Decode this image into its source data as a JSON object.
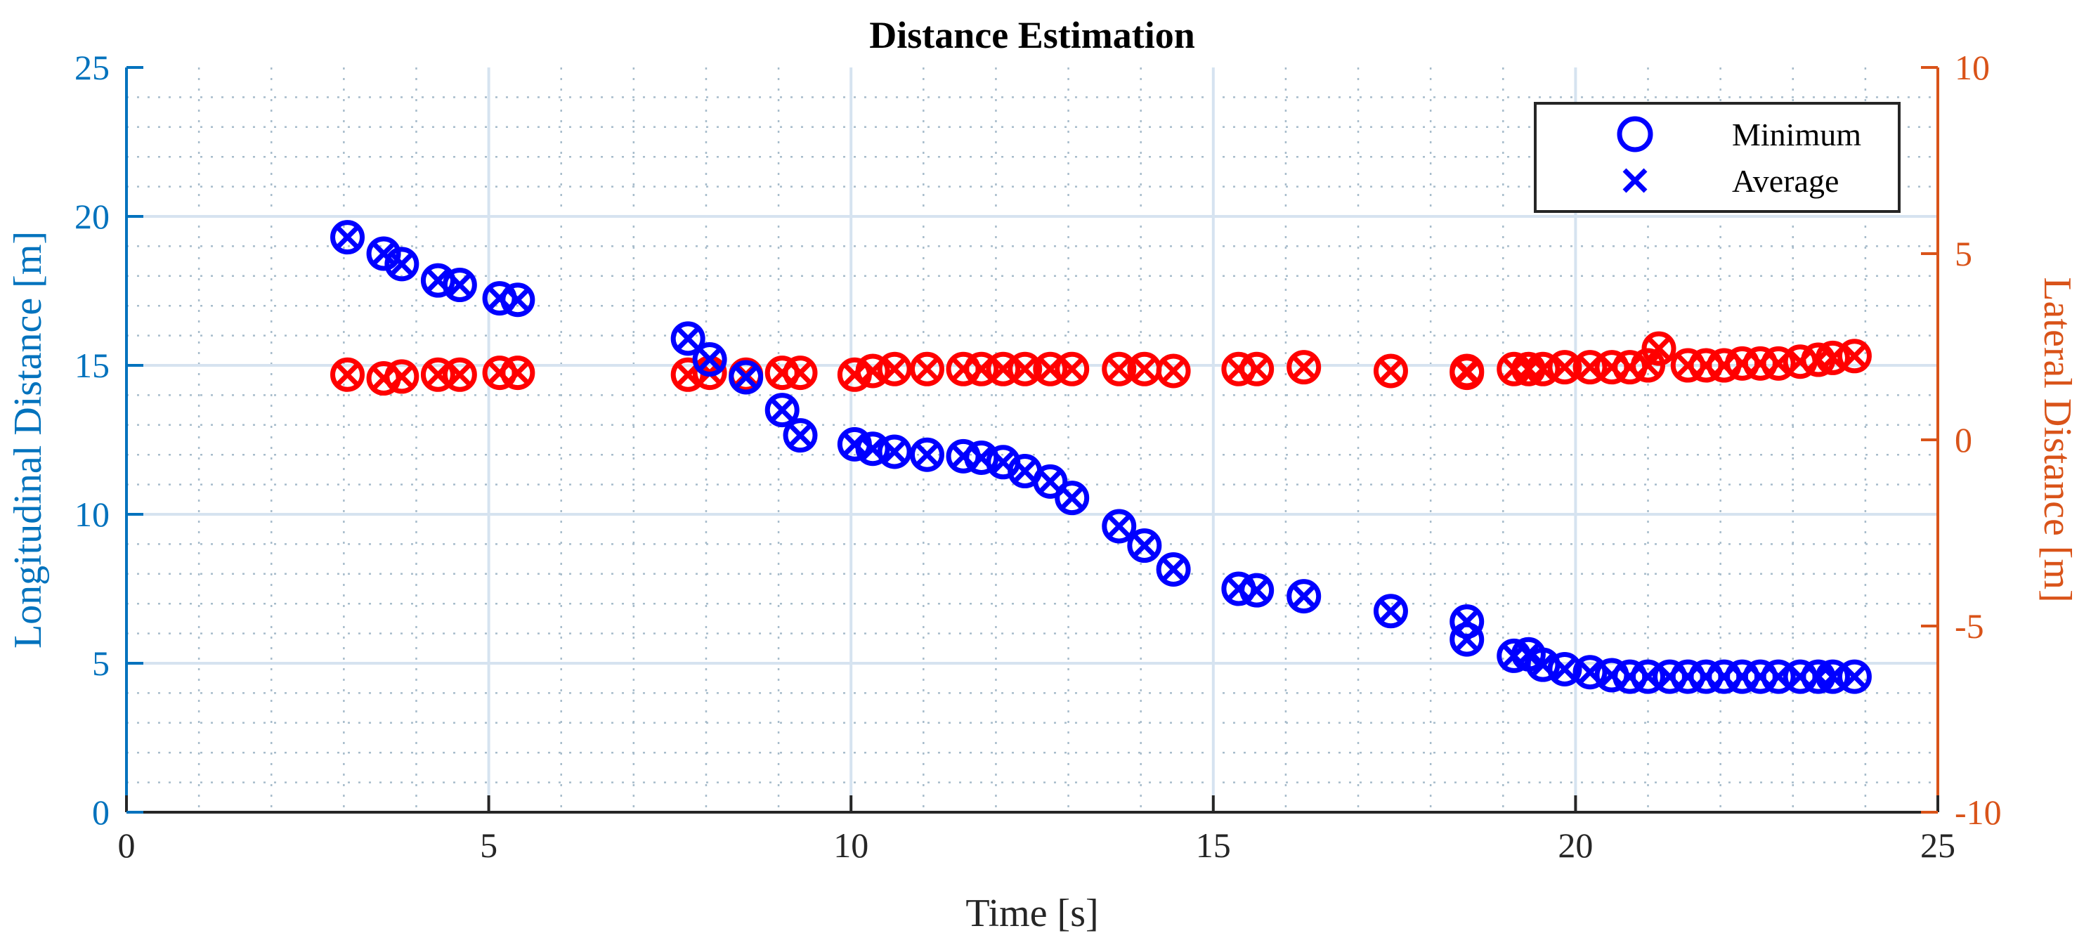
{
  "chart_data": {
    "type": "scatter",
    "title": "Distance Estimation",
    "xlabel": "Time [s]",
    "ylabel_left": "Longitudinal Distance [m]",
    "ylabel_right": "Lateral Distance [m]",
    "xlim": [
      0,
      25
    ],
    "ylim_left": [
      0,
      25
    ],
    "ylim_right": [
      -10,
      10
    ],
    "x_ticks": [
      "0",
      "5",
      "10",
      "15",
      "20",
      "25"
    ],
    "y_left_ticks": [
      "0",
      "5",
      "10",
      "15",
      "20",
      "25"
    ],
    "y_right_ticks": [
      "-10",
      "-5",
      "0",
      "5",
      "10"
    ],
    "grid": true,
    "minor_grid": true,
    "legend_position": "top-right",
    "legend": [
      {
        "label": "Minimum",
        "marker": "circle"
      },
      {
        "label": "Average",
        "marker": "x"
      }
    ],
    "colors": {
      "longitudinal": "#0000ff",
      "lateral": "#ff0000",
      "left_axis": "#0072bd",
      "right_axis": "#d95319",
      "major_grid": "#d6e3f0",
      "minor_grid": "#a7bccb"
    },
    "longitudinal": [
      [
        3.05,
        19.3
      ],
      [
        3.55,
        18.75
      ],
      [
        3.8,
        18.4
      ],
      [
        4.3,
        17.85
      ],
      [
        4.6,
        17.7
      ],
      [
        5.15,
        17.25
      ],
      [
        5.4,
        17.2
      ],
      [
        7.75,
        15.9
      ],
      [
        8.05,
        15.2
      ],
      [
        8.55,
        14.6
      ],
      [
        9.05,
        13.5
      ],
      [
        9.3,
        12.65
      ],
      [
        10.05,
        12.35
      ],
      [
        10.3,
        12.2
      ],
      [
        10.6,
        12.1
      ],
      [
        11.05,
        12.0
      ],
      [
        11.55,
        11.95
      ],
      [
        11.8,
        11.9
      ],
      [
        12.1,
        11.75
      ],
      [
        12.4,
        11.45
      ],
      [
        12.75,
        11.1
      ],
      [
        13.05,
        10.55
      ],
      [
        13.7,
        9.6
      ],
      [
        14.05,
        8.95
      ],
      [
        14.45,
        8.15
      ],
      [
        15.35,
        7.5
      ],
      [
        15.6,
        7.45
      ],
      [
        16.25,
        7.25
      ],
      [
        17.45,
        6.75
      ],
      [
        18.5,
        6.4
      ],
      [
        18.5,
        5.8
      ],
      [
        19.15,
        5.25
      ],
      [
        19.35,
        5.3
      ],
      [
        19.55,
        4.95
      ],
      [
        19.85,
        4.8
      ],
      [
        20.2,
        4.7
      ],
      [
        20.5,
        4.6
      ],
      [
        20.75,
        4.55
      ],
      [
        21.0,
        4.55
      ],
      [
        21.3,
        4.55
      ],
      [
        21.55,
        4.55
      ],
      [
        21.8,
        4.55
      ],
      [
        22.05,
        4.55
      ],
      [
        22.3,
        4.55
      ],
      [
        22.55,
        4.55
      ],
      [
        22.8,
        4.55
      ],
      [
        23.1,
        4.55
      ],
      [
        23.35,
        4.55
      ],
      [
        23.55,
        4.55
      ],
      [
        23.85,
        4.55
      ]
    ],
    "lateral": [
      [
        3.05,
        1.75
      ],
      [
        3.55,
        1.65
      ],
      [
        3.8,
        1.7
      ],
      [
        4.3,
        1.75
      ],
      [
        4.6,
        1.75
      ],
      [
        5.15,
        1.8
      ],
      [
        5.4,
        1.8
      ],
      [
        7.75,
        1.75
      ],
      [
        8.05,
        1.8
      ],
      [
        8.55,
        1.75
      ],
      [
        9.05,
        1.8
      ],
      [
        9.3,
        1.8
      ],
      [
        10.05,
        1.75
      ],
      [
        10.3,
        1.85
      ],
      [
        10.6,
        1.9
      ],
      [
        11.05,
        1.9
      ],
      [
        11.55,
        1.9
      ],
      [
        11.8,
        1.9
      ],
      [
        12.1,
        1.9
      ],
      [
        12.4,
        1.9
      ],
      [
        12.75,
        1.9
      ],
      [
        13.05,
        1.9
      ],
      [
        13.7,
        1.9
      ],
      [
        14.05,
        1.9
      ],
      [
        14.45,
        1.85
      ],
      [
        15.35,
        1.9
      ],
      [
        15.6,
        1.9
      ],
      [
        16.25,
        1.95
      ],
      [
        17.45,
        1.85
      ],
      [
        18.5,
        1.8
      ],
      [
        18.5,
        1.85
      ],
      [
        19.15,
        1.9
      ],
      [
        19.35,
        1.9
      ],
      [
        19.55,
        1.9
      ],
      [
        19.85,
        1.95
      ],
      [
        20.2,
        1.95
      ],
      [
        20.5,
        1.95
      ],
      [
        20.75,
        1.95
      ],
      [
        21.0,
        2.0
      ],
      [
        21.15,
        2.45
      ],
      [
        21.55,
        2.0
      ],
      [
        21.8,
        2.0
      ],
      [
        22.05,
        2.0
      ],
      [
        22.3,
        2.05
      ],
      [
        22.55,
        2.05
      ],
      [
        22.8,
        2.05
      ],
      [
        23.1,
        2.1
      ],
      [
        23.35,
        2.15
      ],
      [
        23.55,
        2.2
      ],
      [
        23.85,
        2.25
      ]
    ]
  }
}
